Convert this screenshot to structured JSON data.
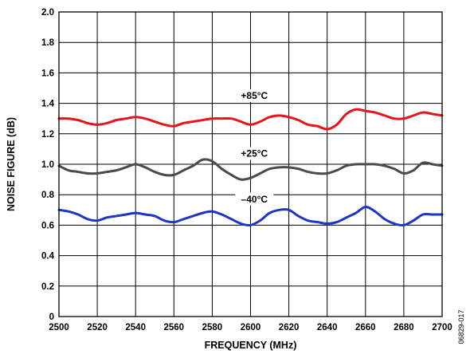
{
  "chart_data": {
    "type": "line",
    "title": "",
    "xlabel": "FREQUENCY (MHz)",
    "ylabel": "NOISE FIGURE (dB)",
    "xlim": [
      2500,
      2700
    ],
    "ylim": [
      0,
      2.0
    ],
    "x_ticks": [
      "2500",
      "2520",
      "2540",
      "2560",
      "2580",
      "2600",
      "2620",
      "2640",
      "2660",
      "2680",
      "2700"
    ],
    "y_ticks": [
      "0",
      "0.2",
      "0.4",
      "0.6",
      "0.8",
      "1.0",
      "1.2",
      "1.4",
      "1.6",
      "1.8",
      "2.0"
    ],
    "grid": true,
    "legend": "none",
    "series": [
      {
        "name": "+85°C",
        "color": "#e8141b",
        "x": [
          2500,
          2505,
          2510,
          2515,
          2520,
          2525,
          2530,
          2535,
          2540,
          2545,
          2550,
          2555,
          2560,
          2565,
          2570,
          2575,
          2580,
          2585,
          2590,
          2595,
          2600,
          2605,
          2610,
          2615,
          2620,
          2625,
          2630,
          2635,
          2640,
          2645,
          2650,
          2655,
          2660,
          2665,
          2670,
          2675,
          2680,
          2685,
          2690,
          2695,
          2700
        ],
        "y": [
          1.3,
          1.3,
          1.29,
          1.27,
          1.26,
          1.27,
          1.29,
          1.3,
          1.31,
          1.3,
          1.28,
          1.26,
          1.25,
          1.27,
          1.28,
          1.29,
          1.3,
          1.3,
          1.3,
          1.28,
          1.26,
          1.28,
          1.31,
          1.32,
          1.31,
          1.29,
          1.26,
          1.25,
          1.23,
          1.26,
          1.33,
          1.36,
          1.35,
          1.34,
          1.32,
          1.3,
          1.3,
          1.32,
          1.34,
          1.33,
          1.32
        ]
      },
      {
        "name": "+25°C",
        "color": "#4a4a4a",
        "x": [
          2500,
          2505,
          2510,
          2515,
          2520,
          2525,
          2530,
          2535,
          2540,
          2545,
          2550,
          2555,
          2560,
          2565,
          2570,
          2575,
          2580,
          2585,
          2590,
          2595,
          2600,
          2605,
          2610,
          2615,
          2620,
          2625,
          2630,
          2635,
          2640,
          2645,
          2650,
          2655,
          2660,
          2665,
          2670,
          2675,
          2680,
          2685,
          2690,
          2695,
          2700
        ],
        "y": [
          0.99,
          0.96,
          0.95,
          0.94,
          0.94,
          0.95,
          0.96,
          0.98,
          1.0,
          0.98,
          0.95,
          0.93,
          0.93,
          0.96,
          0.99,
          1.03,
          1.02,
          0.97,
          0.93,
          0.9,
          0.91,
          0.94,
          0.97,
          0.98,
          0.98,
          0.97,
          0.95,
          0.94,
          0.94,
          0.96,
          0.99,
          1.0,
          1.0,
          1.0,
          0.99,
          0.97,
          0.94,
          0.96,
          1.01,
          1.0,
          0.99
        ]
      },
      {
        "name": "–40°C",
        "color": "#1f35c8",
        "x": [
          2500,
          2505,
          2510,
          2515,
          2520,
          2525,
          2530,
          2535,
          2540,
          2545,
          2550,
          2555,
          2560,
          2565,
          2570,
          2575,
          2580,
          2585,
          2590,
          2595,
          2600,
          2605,
          2610,
          2615,
          2620,
          2625,
          2630,
          2635,
          2640,
          2645,
          2650,
          2655,
          2660,
          2665,
          2670,
          2675,
          2680,
          2685,
          2690,
          2695,
          2700
        ],
        "y": [
          0.7,
          0.69,
          0.67,
          0.64,
          0.63,
          0.65,
          0.66,
          0.67,
          0.68,
          0.67,
          0.66,
          0.63,
          0.62,
          0.64,
          0.66,
          0.68,
          0.69,
          0.67,
          0.64,
          0.61,
          0.6,
          0.63,
          0.68,
          0.7,
          0.7,
          0.66,
          0.63,
          0.62,
          0.61,
          0.62,
          0.65,
          0.68,
          0.72,
          0.69,
          0.64,
          0.61,
          0.6,
          0.63,
          0.67,
          0.67,
          0.67
        ]
      }
    ],
    "annotations": [
      {
        "text": "+85°C",
        "x": 2602,
        "y": 1.43
      },
      {
        "text": "+25°C",
        "x": 2602,
        "y": 1.05
      },
      {
        "text": "–40°C",
        "x": 2602,
        "y": 0.75
      }
    ]
  },
  "doc_id": "06829-017"
}
